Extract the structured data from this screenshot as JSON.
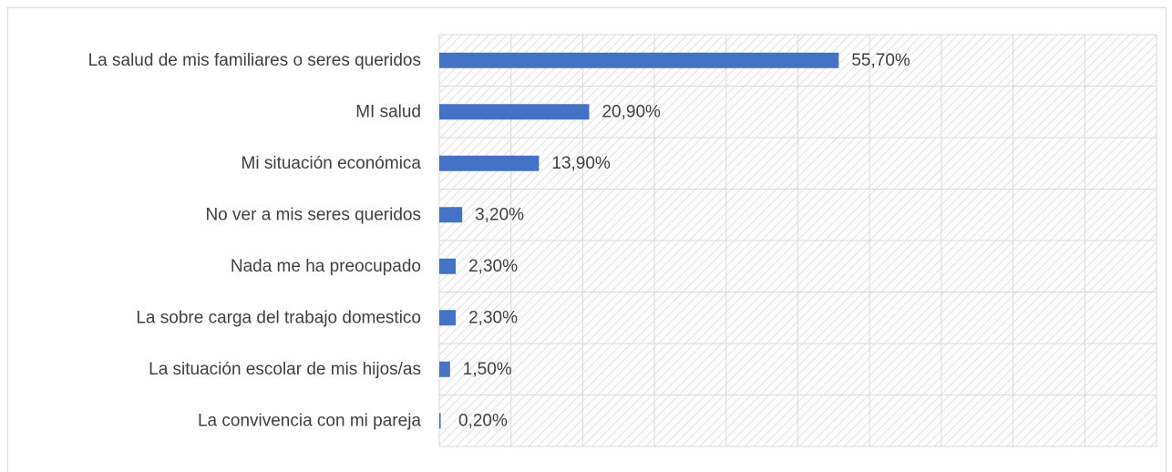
{
  "chart_data": {
    "type": "bar",
    "orientation": "horizontal",
    "title": "",
    "xlabel": "",
    "ylabel": "",
    "categories": [
      "La salud de mis familiares o seres queridos",
      "MI salud",
      "Mi situación económica",
      "No ver a mis seres queridos",
      "Nada me ha preocupado",
      "La sobre carga del trabajo domestico",
      "La situación escolar de mis hijos/as",
      "La convivencia con mi pareja"
    ],
    "values": [
      55.7,
      20.9,
      13.9,
      3.2,
      2.3,
      2.3,
      1.5,
      0.2
    ],
    "data_labels": [
      "55,70%",
      "20,90%",
      "13,90%",
      "3,20%",
      "2,30%",
      "2,30%",
      "1,50%",
      "0,20%"
    ],
    "xlim": [
      0,
      100
    ],
    "grid": true,
    "plot_area_pattern": "diagonal-hatch",
    "bar_color": "#4472c4"
  }
}
